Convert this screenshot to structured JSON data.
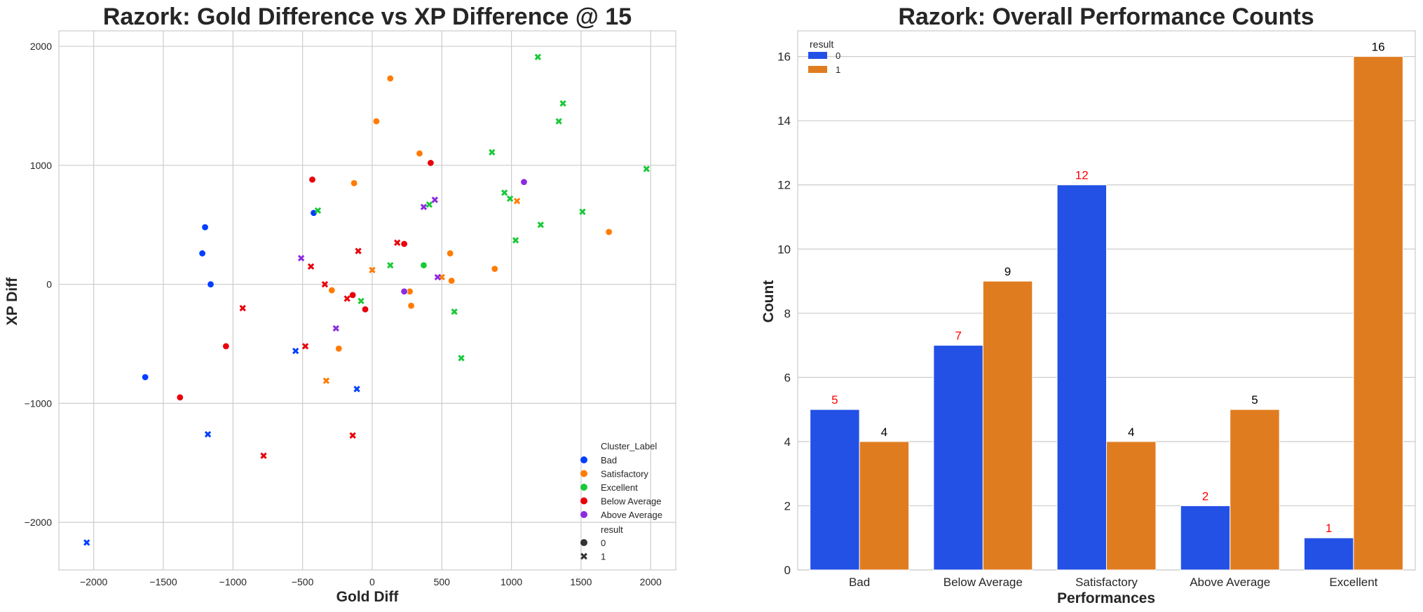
{
  "colors": {
    "Bad": "#023eff",
    "Satisfactory": "#ff7c00",
    "Excellent": "#1ac938",
    "Below Average": "#e8000b",
    "Above Average": "#8b2be2",
    "result0": "#2351e6",
    "result1": "#e07c20",
    "grid": "#cccccc",
    "axis": "#cccccc",
    "label0": "#ff0000",
    "label1": "#000000"
  },
  "chart_data": [
    {
      "type": "scatter",
      "title": "Razork: Gold Difference vs XP Difference @ 15",
      "xlabel": "Gold Diff",
      "ylabel": "XP Diff",
      "xlim": [
        -2250,
        2180
      ],
      "ylim": [
        -2400,
        2130
      ],
      "xticks": [
        -2000,
        -1500,
        -1000,
        -500,
        0,
        500,
        1000,
        1500,
        2000
      ],
      "yticks": [
        -2000,
        -1000,
        0,
        1000,
        2000
      ],
      "grid": true,
      "legend": {
        "placement": "lower-right",
        "hue_title": "Cluster_Label",
        "hue_entries": [
          "Bad",
          "Satisfactory",
          "Excellent",
          "Below Average",
          "Above Average"
        ],
        "style_title": "result",
        "style_entries": [
          "0",
          "1"
        ]
      },
      "points": [
        {
          "x": -1200,
          "y": 480,
          "cluster": "Bad",
          "result": 0
        },
        {
          "x": -1220,
          "y": 260,
          "cluster": "Bad",
          "result": 0
        },
        {
          "x": -1160,
          "y": 0,
          "cluster": "Bad",
          "result": 0
        },
        {
          "x": -1630,
          "y": -780,
          "cluster": "Bad",
          "result": 0
        },
        {
          "x": -420,
          "y": 600,
          "cluster": "Bad",
          "result": 0
        },
        {
          "x": -1180,
          "y": -1260,
          "cluster": "Bad",
          "result": 1
        },
        {
          "x": -550,
          "y": -560,
          "cluster": "Bad",
          "result": 1
        },
        {
          "x": -110,
          "y": -880,
          "cluster": "Bad",
          "result": 1
        },
        {
          "x": -2050,
          "y": -2170,
          "cluster": "Bad",
          "result": 1
        },
        {
          "x": 130,
          "y": 1730,
          "cluster": "Satisfactory",
          "result": 0
        },
        {
          "x": 30,
          "y": 1370,
          "cluster": "Satisfactory",
          "result": 0
        },
        {
          "x": 340,
          "y": 1100,
          "cluster": "Satisfactory",
          "result": 0
        },
        {
          "x": -130,
          "y": 850,
          "cluster": "Satisfactory",
          "result": 0
        },
        {
          "x": 560,
          "y": 260,
          "cluster": "Satisfactory",
          "result": 0
        },
        {
          "x": 880,
          "y": 130,
          "cluster": "Satisfactory",
          "result": 0
        },
        {
          "x": 570,
          "y": 30,
          "cluster": "Satisfactory",
          "result": 0
        },
        {
          "x": -290,
          "y": -50,
          "cluster": "Satisfactory",
          "result": 0
        },
        {
          "x": 270,
          "y": -60,
          "cluster": "Satisfactory",
          "result": 0
        },
        {
          "x": 280,
          "y": -180,
          "cluster": "Satisfactory",
          "result": 0
        },
        {
          "x": -240,
          "y": -540,
          "cluster": "Satisfactory",
          "result": 0
        },
        {
          "x": 1700,
          "y": 440,
          "cluster": "Satisfactory",
          "result": 0
        },
        {
          "x": 1040,
          "y": 700,
          "cluster": "Satisfactory",
          "result": 1
        },
        {
          "x": 0,
          "y": 120,
          "cluster": "Satisfactory",
          "result": 1
        },
        {
          "x": 500,
          "y": 60,
          "cluster": "Satisfactory",
          "result": 1
        },
        {
          "x": -330,
          "y": -810,
          "cluster": "Satisfactory",
          "result": 1
        },
        {
          "x": 370,
          "y": 160,
          "cluster": "Excellent",
          "result": 0
        },
        {
          "x": 1190,
          "y": 1910,
          "cluster": "Excellent",
          "result": 1
        },
        {
          "x": 1370,
          "y": 1520,
          "cluster": "Excellent",
          "result": 1
        },
        {
          "x": 1340,
          "y": 1370,
          "cluster": "Excellent",
          "result": 1
        },
        {
          "x": 860,
          "y": 1110,
          "cluster": "Excellent",
          "result": 1
        },
        {
          "x": 1970,
          "y": 970,
          "cluster": "Excellent",
          "result": 1
        },
        {
          "x": 950,
          "y": 770,
          "cluster": "Excellent",
          "result": 1
        },
        {
          "x": 990,
          "y": 720,
          "cluster": "Excellent",
          "result": 1
        },
        {
          "x": 410,
          "y": 670,
          "cluster": "Excellent",
          "result": 1
        },
        {
          "x": 1510,
          "y": 610,
          "cluster": "Excellent",
          "result": 1
        },
        {
          "x": -390,
          "y": 620,
          "cluster": "Excellent",
          "result": 1
        },
        {
          "x": 1210,
          "y": 500,
          "cluster": "Excellent",
          "result": 1
        },
        {
          "x": 1030,
          "y": 370,
          "cluster": "Excellent",
          "result": 1
        },
        {
          "x": 130,
          "y": 160,
          "cluster": "Excellent",
          "result": 1
        },
        {
          "x": -80,
          "y": -140,
          "cluster": "Excellent",
          "result": 1
        },
        {
          "x": 590,
          "y": -230,
          "cluster": "Excellent",
          "result": 1
        },
        {
          "x": 640,
          "y": -620,
          "cluster": "Excellent",
          "result": 1
        },
        {
          "x": -430,
          "y": 880,
          "cluster": "Below Average",
          "result": 0
        },
        {
          "x": 420,
          "y": 1020,
          "cluster": "Below Average",
          "result": 0
        },
        {
          "x": 230,
          "y": 340,
          "cluster": "Below Average",
          "result": 0
        },
        {
          "x": -140,
          "y": -90,
          "cluster": "Below Average",
          "result": 0
        },
        {
          "x": -50,
          "y": -210,
          "cluster": "Below Average",
          "result": 0
        },
        {
          "x": -1050,
          "y": -520,
          "cluster": "Below Average",
          "result": 0
        },
        {
          "x": -1380,
          "y": -950,
          "cluster": "Below Average",
          "result": 0
        },
        {
          "x": -100,
          "y": 280,
          "cluster": "Below Average",
          "result": 1
        },
        {
          "x": 180,
          "y": 350,
          "cluster": "Below Average",
          "result": 1
        },
        {
          "x": -440,
          "y": 150,
          "cluster": "Below Average",
          "result": 1
        },
        {
          "x": -340,
          "y": 0,
          "cluster": "Below Average",
          "result": 1
        },
        {
          "x": -180,
          "y": -120,
          "cluster": "Below Average",
          "result": 1
        },
        {
          "x": -930,
          "y": -200,
          "cluster": "Below Average",
          "result": 1
        },
        {
          "x": -480,
          "y": -520,
          "cluster": "Below Average",
          "result": 1
        },
        {
          "x": -140,
          "y": -1270,
          "cluster": "Below Average",
          "result": 1
        },
        {
          "x": -780,
          "y": -1440,
          "cluster": "Below Average",
          "result": 1
        },
        {
          "x": 1090,
          "y": 860,
          "cluster": "Above Average",
          "result": 0
        },
        {
          "x": 230,
          "y": -60,
          "cluster": "Above Average",
          "result": 0
        },
        {
          "x": 450,
          "y": 710,
          "cluster": "Above Average",
          "result": 1
        },
        {
          "x": 370,
          "y": 650,
          "cluster": "Above Average",
          "result": 1
        },
        {
          "x": -510,
          "y": 220,
          "cluster": "Above Average",
          "result": 1
        },
        {
          "x": 470,
          "y": 60,
          "cluster": "Above Average",
          "result": 1
        },
        {
          "x": -260,
          "y": -370,
          "cluster": "Above Average",
          "result": 1
        }
      ]
    },
    {
      "type": "bar",
      "title": "Razork: Overall Performance Counts",
      "xlabel": "Performances",
      "ylabel": "Count",
      "ylim": [
        0,
        16.8
      ],
      "yticks": [
        0,
        2,
        4,
        6,
        8,
        10,
        12,
        14,
        16
      ],
      "grid": true,
      "categories": [
        "Bad",
        "Below Average",
        "Satisfactory",
        "Above Average",
        "Excellent"
      ],
      "legend": {
        "placement": "top-left",
        "title": "result"
      },
      "series": [
        {
          "name": "0",
          "values": [
            5,
            7,
            12,
            2,
            1
          ]
        },
        {
          "name": "1",
          "values": [
            4,
            9,
            4,
            5,
            16
          ]
        }
      ]
    }
  ]
}
